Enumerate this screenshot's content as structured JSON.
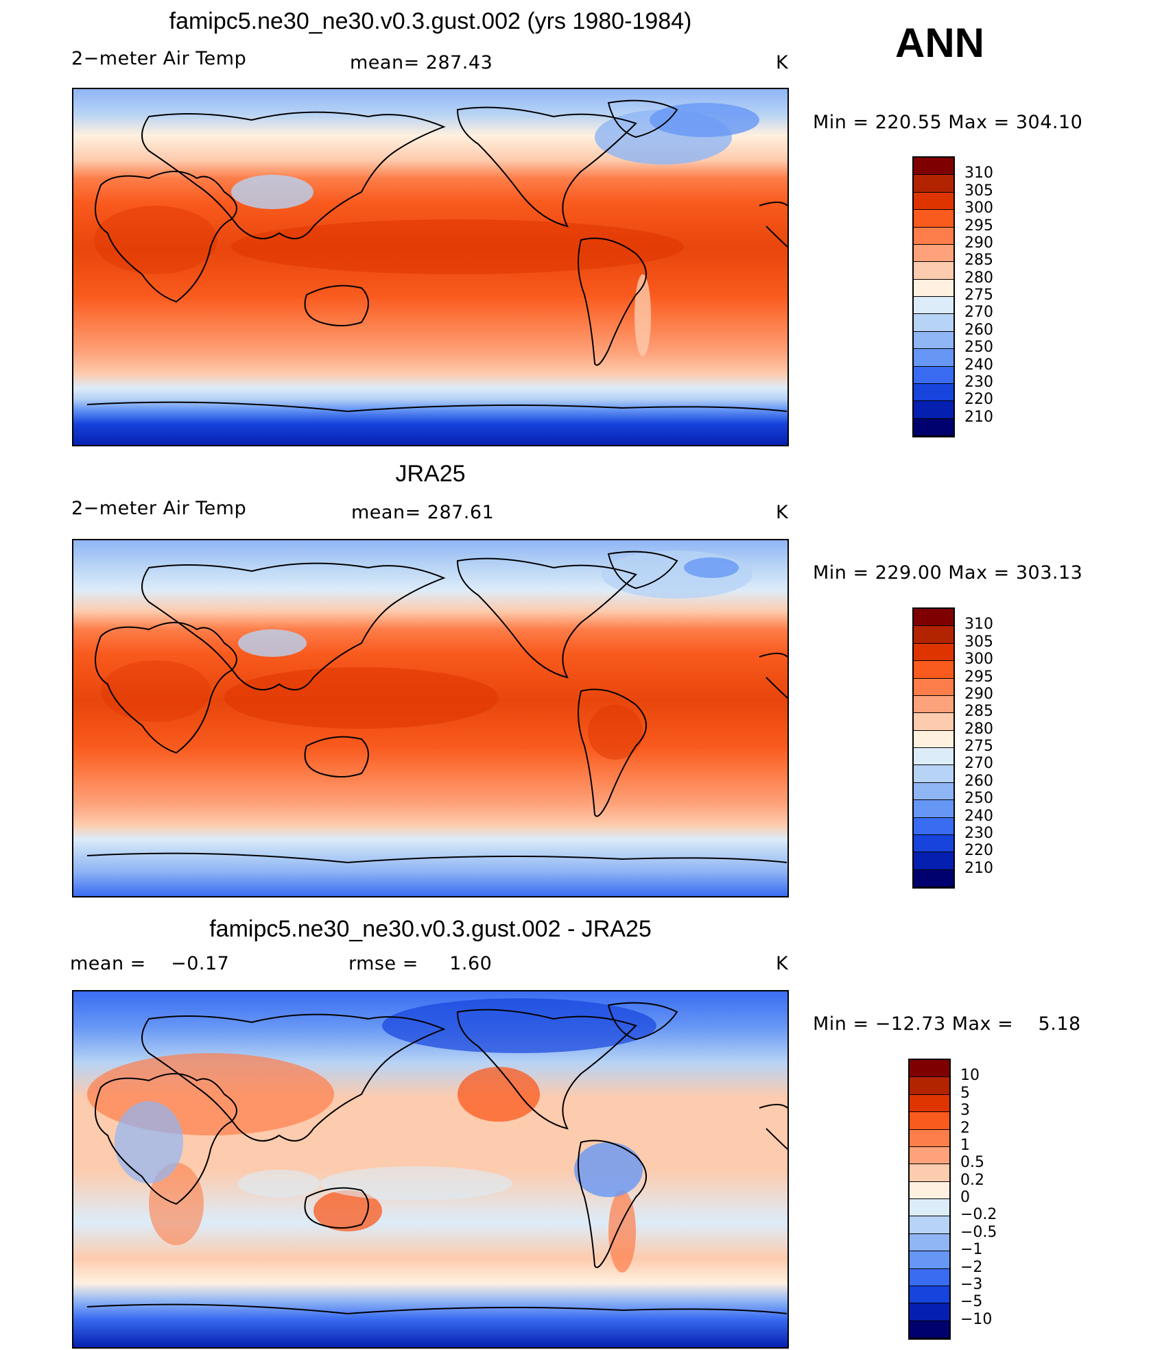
{
  "season": "ANN",
  "panels": [
    {
      "title": "famipc5.ne30_ne30.v0.3.gust.002 (yrs 1980-1984)",
      "left_label": "2−meter Air Temp",
      "center_label": "mean= 287.43",
      "units": "K",
      "minmax": "Min = 220.55 Max = 304.10",
      "min": 220.55,
      "max": 304.1,
      "colorbar": {
        "labels": [
          "310",
          "305",
          "300",
          "295",
          "290",
          "285",
          "280",
          "275",
          "270",
          "260",
          "250",
          "240",
          "230",
          "220",
          "210"
        ],
        "colors": [
          "#7f0000",
          "#b22300",
          "#de3500",
          "#f95a1d",
          "#fd7e4a",
          "#fda27a",
          "#fdcbad",
          "#fff0e0",
          "#dcecf9",
          "#b7d3f5",
          "#8fb5f5",
          "#6797f5",
          "#3a6cf1",
          "#1744dd",
          "#0520b0",
          "#00006e"
        ]
      }
    },
    {
      "title": "JRA25",
      "left_label": "2−meter Air Temp",
      "center_label": "mean= 287.61",
      "units": "K",
      "minmax": "Min = 229.00 Max = 303.13",
      "min": 229.0,
      "max": 303.13,
      "colorbar": {
        "labels": [
          "310",
          "305",
          "300",
          "295",
          "290",
          "285",
          "280",
          "275",
          "270",
          "260",
          "250",
          "240",
          "230",
          "220",
          "210"
        ],
        "colors": [
          "#7f0000",
          "#b22300",
          "#de3500",
          "#f95a1d",
          "#fd7e4a",
          "#fda27a",
          "#fdcbad",
          "#fff0e0",
          "#dcecf9",
          "#b7d3f5",
          "#8fb5f5",
          "#6797f5",
          "#3a6cf1",
          "#1744dd",
          "#0520b0",
          "#00006e"
        ]
      }
    },
    {
      "title": "famipc5.ne30_ne30.v0.3.gust.002 - JRA25",
      "left_label": "mean =    −0.17",
      "center_label": "rmse =     1.60",
      "units": "K",
      "minmax": "Min = −12.73 Max =    5.18",
      "min": -12.73,
      "max": 5.18,
      "colorbar": {
        "labels": [
          "10",
          "5",
          "3",
          "2",
          "1",
          "0.5",
          "0.2",
          "0",
          "−0.2",
          "−0.5",
          "−1",
          "−2",
          "−3",
          "−5",
          "−10"
        ],
        "colors": [
          "#7f0000",
          "#b22300",
          "#de3500",
          "#f95a1d",
          "#fd7e4a",
          "#fda27a",
          "#fdcbad",
          "#fff0e0",
          "#dcecf9",
          "#b7d3f5",
          "#8fb5f5",
          "#6797f5",
          "#3a6cf1",
          "#1744dd",
          "#0520b0",
          "#00006e"
        ]
      }
    }
  ]
}
